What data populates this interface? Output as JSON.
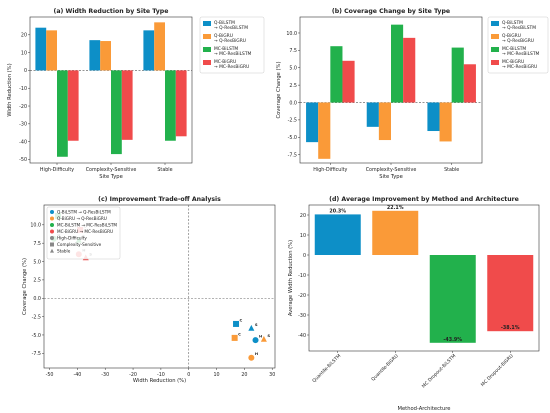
{
  "series_names": [
    "Q-BiLSTM\n→ Q-ResBiLSTM",
    "Q-BiGRU\n→ Q-ResBiGRU",
    "MC-BiLSTM\n→ MC-ResBiLSTM",
    "MC-BiGRU\n→ MC-ResBiGRU"
  ],
  "colors": [
    "#0d8fc7",
    "#fa9a38",
    "#22b14c",
    "#f04b4b"
  ],
  "chart_data": [
    {
      "type": "bar",
      "title": "(a) Width Reduction by Site Type",
      "xlabel": "Site Type",
      "ylabel": "Width Reduction (%)",
      "categories": [
        "High-Difficulty",
        "Complexity-Sensitive",
        "Stable"
      ],
      "series": [
        {
          "name": "Q-BiLSTM\n→ Q-ResBiLSTM",
          "values": [
            24,
            17,
            22.5
          ]
        },
        {
          "name": "Q-BiGRU\n→ Q-ResBiGRU",
          "values": [
            22.5,
            16.5,
            27
          ]
        },
        {
          "name": "MC-BiLSTM\n→ MC-ResBiLSTM",
          "values": [
            -48.5,
            -47,
            -39.5
          ]
        },
        {
          "name": "MC-BiGRU\n→ MC-ResBiGRU",
          "values": [
            -39.5,
            -39,
            -37
          ]
        }
      ],
      "ylim": [
        -52,
        30
      ],
      "yticks": [
        -50,
        -40,
        -30,
        -20,
        -10,
        0,
        10,
        20
      ],
      "legend": "right"
    },
    {
      "type": "bar",
      "title": "(b) Coverage Change by Site Type",
      "xlabel": "Site Type",
      "ylabel": "Coverage Change (%)",
      "categories": [
        "High-Difficulty",
        "Complexity-Sensitive",
        "Stable"
      ],
      "series": [
        {
          "name": "Q-BiLSTM\n→ Q-ResBiLSTM",
          "values": [
            -5.7,
            -3.5,
            -4.1
          ]
        },
        {
          "name": "Q-BiGRU\n→ Q-ResBiGRU",
          "values": [
            -8.1,
            -5.4,
            -5.6
          ]
        },
        {
          "name": "MC-BiLSTM\n→ MC-ResBiLSTM",
          "values": [
            8.1,
            11.2,
            7.9
          ]
        },
        {
          "name": "MC-BiGRU\n→ MC-ResBiGRU",
          "values": [
            6.0,
            9.3,
            5.5
          ]
        }
      ],
      "ylim": [
        -8.7,
        12.3
      ],
      "yticks": [
        -7.5,
        -5.0,
        -2.5,
        0.0,
        2.5,
        5.0,
        7.5,
        10.0
      ],
      "legend": "right"
    },
    {
      "type": "scatter",
      "title": "(c) Improvement Trade-off Analysis",
      "xlabel": "Width Reduction (%)",
      "ylabel": "Coverage Change (%)",
      "xlim": [
        -52,
        31
      ],
      "ylim": [
        -9.5,
        12.7
      ],
      "xticks": [
        -50,
        -40,
        -30,
        -20,
        -10,
        0,
        10,
        20,
        30
      ],
      "yticks": [
        -7.5,
        -5.0,
        -2.5,
        0.0,
        2.5,
        5.0,
        7.5,
        10.0
      ],
      "legend_series": [
        "Q-BiLSTM → Q-ResBiLSTM",
        "Q-BiGRU → Q-ResBiGRU",
        "MC-BiLSTM → MC-ResBiLSTM",
        "MC-BiGRU → MC-ResBiGRU"
      ],
      "site_types": [
        {
          "label": "High-Difficulty",
          "marker": "circle"
        },
        {
          "label": "Complexity-Sensitive",
          "marker": "square"
        },
        {
          "label": "Stable",
          "marker": "triangle"
        }
      ],
      "points": [
        {
          "series": 0,
          "site": 0,
          "x": 24,
          "y": -5.7,
          "label": "H"
        },
        {
          "series": 0,
          "site": 1,
          "x": 17,
          "y": -3.5,
          "label": "C"
        },
        {
          "series": 0,
          "site": 2,
          "x": 22.5,
          "y": -4.1,
          "label": "S"
        },
        {
          "series": 1,
          "site": 0,
          "x": 22.5,
          "y": -8.1,
          "label": "H"
        },
        {
          "series": 1,
          "site": 1,
          "x": 16.5,
          "y": -5.4,
          "label": "C"
        },
        {
          "series": 1,
          "site": 2,
          "x": 27,
          "y": -5.6,
          "label": "S"
        },
        {
          "series": 2,
          "site": 0,
          "x": -48.5,
          "y": 8.1,
          "label": "H"
        },
        {
          "series": 2,
          "site": 1,
          "x": -47,
          "y": 11.2,
          "label": "C"
        },
        {
          "series": 2,
          "site": 2,
          "x": -39.5,
          "y": 7.9,
          "label": "S"
        },
        {
          "series": 3,
          "site": 0,
          "x": -39.5,
          "y": 6.0,
          "label": "H"
        },
        {
          "series": 3,
          "site": 1,
          "x": -39,
          "y": 9.3,
          "label": "C"
        },
        {
          "series": 3,
          "site": 2,
          "x": -37,
          "y": 5.5,
          "label": "S"
        }
      ]
    },
    {
      "type": "bar",
      "title": "(d) Average Improvement by Method and Architecture",
      "xlabel": "Method-Architecture",
      "ylabel": "Average Width Reduction (%)",
      "categories": [
        "Quantile-BiLSTM",
        "Quantile-BiGRU",
        "MC Dropout-BiLSTM",
        "MC Dropout-BiGRU"
      ],
      "values": [
        20.3,
        22.1,
        -43.9,
        -38.1
      ],
      "value_labels": [
        "20.3%",
        "22.1%",
        "-43.9%",
        "-38.1%"
      ],
      "ylim": [
        -48,
        25
      ],
      "yticks": [
        -40,
        -30,
        -20,
        -10,
        0,
        10,
        20
      ]
    }
  ]
}
